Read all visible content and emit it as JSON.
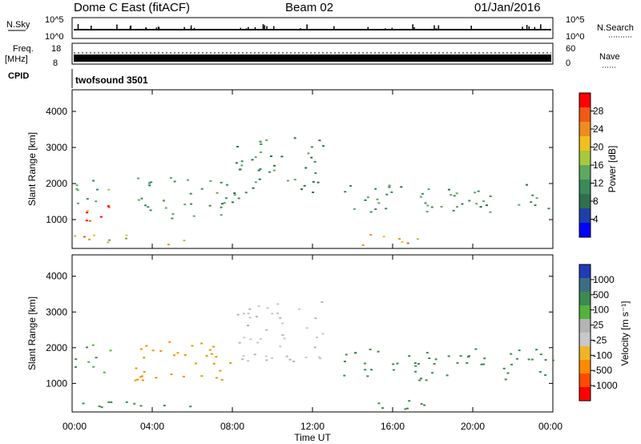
{
  "header": {
    "radar": "Dome C East (fitACF)",
    "beam": "Beam 02",
    "date": "01/Jan/2016"
  },
  "strips": {
    "nsky_label": "N.Sky",
    "nsky_ticks": [
      "10^5",
      "10^0"
    ],
    "nsearch_label": "N.Search",
    "nsearch_ticks": [
      "10^5",
      "10^0"
    ],
    "freq_label": "Freq.",
    "freq_unit": "[MHz]",
    "freq_ticks": [
      "18",
      "8"
    ],
    "nave_label": "Nave",
    "nave_ticks": [
      "60",
      "0"
    ],
    "cpid_label": "CPID",
    "cpid_value": "twofsound 3501"
  },
  "colors": {
    "power": [
      "#0000ff",
      "#1f3fa8",
      "#2f6f4f",
      "#3a8a5a",
      "#5fa85f",
      "#a8c83c",
      "#f0c020",
      "#f08c1e",
      "#f05a14",
      "#ff0000"
    ],
    "velocity": [
      "#ff0000",
      "#ff4a00",
      "#ff8c00",
      "#f0b428",
      "#c8c8c8",
      "#b4b4b4",
      "#50b43c",
      "#3c8a50",
      "#3c6e82",
      "#1e3cb4"
    ]
  },
  "chart_data": [
    {
      "type": "heatmap",
      "name": "power-panel",
      "xlabel": "",
      "ylabel": "Slant Range [km]",
      "xlim": [
        0,
        24
      ],
      "ylim": [
        200,
        4600
      ],
      "yticks": [
        1000,
        2000,
        3000,
        4000
      ],
      "colorbar": {
        "label": "Power [dB]",
        "ticks": [
          "28",
          "24",
          "20",
          "16",
          "12",
          "8",
          "4"
        ],
        "range": [
          0,
          32
        ]
      },
      "regions": [
        {
          "x": [
            0,
            2.5
          ],
          "y": [
            900,
            1400
          ],
          "v": 28
        },
        {
          "x": [
            0,
            6
          ],
          "y": [
            300,
            600
          ],
          "v": 20
        },
        {
          "x": [
            0,
            2
          ],
          "y": [
            1400,
            2200
          ],
          "v": 14
        },
        {
          "x": [
            3,
            8
          ],
          "y": [
            1000,
            2200
          ],
          "v": 12
        },
        {
          "x": [
            8,
            12.5
          ],
          "y": [
            1600,
            3300
          ],
          "v": 10
        },
        {
          "x": [
            13.5,
            24
          ],
          "y": [
            1200,
            2000
          ],
          "v": 12
        },
        {
          "x": [
            14,
            18
          ],
          "y": [
            300,
            600
          ],
          "v": 20
        }
      ]
    },
    {
      "type": "heatmap",
      "name": "velocity-panel",
      "xlabel": "Time UT",
      "ylabel": "Slant Range [km]",
      "xlim": [
        0,
        24
      ],
      "ylim": [
        200,
        4600
      ],
      "xticks": [
        "00:00",
        "04:00",
        "08:00",
        "12:00",
        "16:00",
        "20:00",
        "00:00"
      ],
      "yticks": [
        1000,
        2000,
        3000,
        4000
      ],
      "colorbar": {
        "label": "Velocity [m s⁻¹]",
        "ticks": [
          "1000",
          "500",
          "100",
          "25",
          "-25",
          "-100",
          "-500",
          "-1000"
        ]
      },
      "regions": [
        {
          "x": [
            0,
            6
          ],
          "y": [
            300,
            600
          ],
          "v": 150
        },
        {
          "x": [
            0,
            2
          ],
          "y": [
            1300,
            2100
          ],
          "v": 100
        },
        {
          "x": [
            3,
            8
          ],
          "y": [
            1000,
            2200
          ],
          "v": -300
        },
        {
          "x": [
            8,
            12.5
          ],
          "y": [
            1600,
            3300
          ],
          "v": 0
        },
        {
          "x": [
            13.5,
            24
          ],
          "y": [
            1100,
            2000
          ],
          "v": 200
        },
        {
          "x": [
            14,
            18
          ],
          "y": [
            300,
            600
          ],
          "v": 150
        }
      ]
    }
  ],
  "axis": {
    "time_label": "Time UT"
  }
}
